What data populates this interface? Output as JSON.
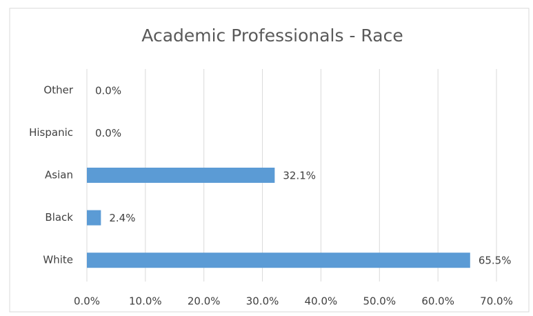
{
  "chart_data": {
    "type": "hbar",
    "title": "Academic Professionals - Race",
    "categories": [
      "Other",
      "Hispanic",
      "Asian",
      "Black",
      "White"
    ],
    "values": [
      0,
      0,
      32.1,
      2.4,
      65.5
    ],
    "value_labels": [
      "0.0%",
      "0.0%",
      "32.1%",
      "2.4%",
      "65.5%"
    ],
    "color": "#5b9bd5",
    "xlim": [
      0,
      70
    ],
    "xticks": [
      {
        "value": 0,
        "label": "0.0%"
      },
      {
        "value": 10,
        "label": "10.0%"
      },
      {
        "value": 20,
        "label": "20.0%"
      },
      {
        "value": 30,
        "label": "30.0%"
      },
      {
        "value": 40,
        "label": "40.0%"
      },
      {
        "value": 50,
        "label": "50.0%"
      },
      {
        "value": 60,
        "label": "60.0%"
      },
      {
        "value": 70,
        "label": "70.0%"
      }
    ],
    "grid": true
  }
}
